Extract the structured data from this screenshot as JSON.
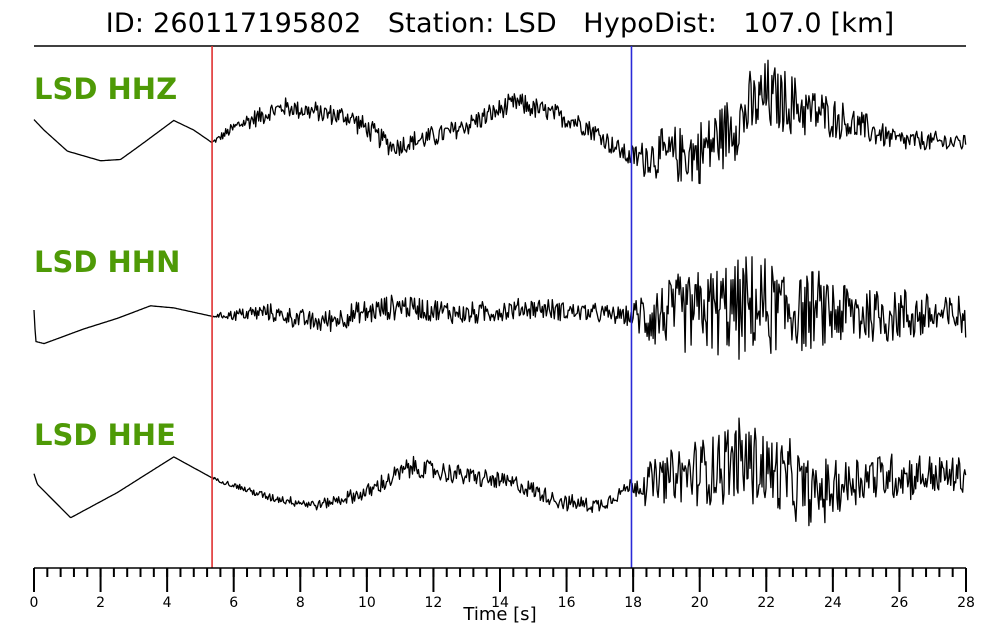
{
  "title": {
    "id_label": "ID:",
    "id_value": "260117195802",
    "station_label": "Station:",
    "station_value": "LSD",
    "dist_label": "HypoDist:",
    "dist_value": "107.0",
    "dist_unit": "[km]"
  },
  "chart_data": {
    "type": "line",
    "title": "ID: 260117195802   Station: LSD   HypoDist:   107.0 [km]",
    "xlabel": "Time [s]",
    "ylabel": "",
    "xlim": [
      0,
      28
    ],
    "x_ticks": [
      0,
      2,
      4,
      6,
      8,
      10,
      12,
      14,
      16,
      18,
      20,
      22,
      24,
      26,
      28
    ],
    "x_tick_labels": [
      "0",
      "2",
      "4",
      "6",
      "8",
      "10",
      "12",
      "14",
      "16",
      "18",
      "20",
      "22",
      "24",
      "26",
      "28"
    ],
    "minor_tick_step": 0.4,
    "grid": false,
    "picks": [
      {
        "phase": "P",
        "time": 5.35,
        "color": "#e03030"
      },
      {
        "phase": "S",
        "time": 17.95,
        "color": "#2a2ad8"
      }
    ],
    "series": [
      {
        "name": "LSD HHZ",
        "color": "#000000",
        "noise_start": 5.35,
        "low_freq": [
          [
            0,
            0.2
          ],
          [
            0.3,
            -0.05
          ],
          [
            1,
            -0.55
          ],
          [
            2,
            -0.78
          ],
          [
            2.6,
            -0.75
          ],
          [
            3.3,
            -0.35
          ],
          [
            4.2,
            0.18
          ],
          [
            4.8,
            -0.05
          ],
          [
            5.35,
            -0.35
          ],
          [
            6.2,
            0.1
          ],
          [
            7.5,
            0.5
          ],
          [
            9.5,
            0.25
          ],
          [
            10.8,
            -0.45
          ],
          [
            12.5,
            -0.1
          ],
          [
            14.5,
            0.6
          ],
          [
            16.5,
            0.1
          ],
          [
            17.9,
            -0.7
          ],
          [
            20,
            -0.6
          ],
          [
            22,
            0.75
          ],
          [
            24,
            0.25
          ],
          [
            26,
            -0.3
          ],
          [
            28,
            -0.35
          ]
        ],
        "noise_amp": [
          [
            5.35,
            0.05
          ],
          [
            6.2,
            0.25
          ],
          [
            10,
            0.3
          ],
          [
            17.9,
            0.3
          ],
          [
            18.4,
            0.6
          ],
          [
            20,
            0.9
          ],
          [
            22,
            1.05
          ],
          [
            24,
            0.55
          ],
          [
            26,
            0.3
          ],
          [
            28,
            0.25
          ]
        ]
      },
      {
        "name": "LSD HHN",
        "color": "#000000",
        "noise_start": 5.35,
        "low_freq": [
          [
            0,
            0
          ],
          [
            0.05,
            -0.75
          ],
          [
            0.3,
            -0.8
          ],
          [
            1.5,
            -0.45
          ],
          [
            2.5,
            -0.2
          ],
          [
            3.5,
            0.1
          ],
          [
            4.2,
            0.05
          ],
          [
            5.35,
            -0.15
          ],
          [
            7,
            -0.05
          ],
          [
            8.5,
            -0.3
          ],
          [
            11,
            0.1
          ],
          [
            13,
            -0.1
          ],
          [
            15,
            0.05
          ],
          [
            17.9,
            -0.15
          ],
          [
            20,
            0
          ],
          [
            22,
            0.05
          ],
          [
            25,
            -0.1
          ],
          [
            28,
            -0.15
          ]
        ],
        "noise_amp": [
          [
            5.35,
            0.03
          ],
          [
            6.2,
            0.2
          ],
          [
            10,
            0.35
          ],
          [
            17.9,
            0.25
          ],
          [
            18.4,
            0.9
          ],
          [
            21.5,
            1.4
          ],
          [
            24,
            1.0
          ],
          [
            28,
            0.55
          ]
        ]
      },
      {
        "name": "LSD HHE",
        "color": "#000000",
        "noise_start": 5.35,
        "low_freq": [
          [
            0,
            0.15
          ],
          [
            0.1,
            -0.1
          ],
          [
            1.1,
            -0.9
          ],
          [
            2.5,
            -0.3
          ],
          [
            4.2,
            0.55
          ],
          [
            5.35,
            0.05
          ],
          [
            7,
            -0.4
          ],
          [
            8.5,
            -0.6
          ],
          [
            10,
            -0.3
          ],
          [
            11.3,
            0.3
          ],
          [
            13,
            0.1
          ],
          [
            14.5,
            -0.1
          ],
          [
            16,
            -0.55
          ],
          [
            17,
            -0.6
          ],
          [
            17.9,
            -0.15
          ],
          [
            19.5,
            0.1
          ],
          [
            21.3,
            0.5
          ],
          [
            23.5,
            -0.35
          ],
          [
            25,
            0.1
          ],
          [
            28,
            0.1
          ]
        ],
        "noise_amp": [
          [
            5.35,
            0.03
          ],
          [
            6.2,
            0.1
          ],
          [
            9,
            0.15
          ],
          [
            11,
            0.3
          ],
          [
            17.9,
            0.2
          ],
          [
            18.4,
            0.6
          ],
          [
            21.5,
            1.3
          ],
          [
            24,
            0.8
          ],
          [
            28,
            0.5
          ]
        ]
      }
    ]
  }
}
